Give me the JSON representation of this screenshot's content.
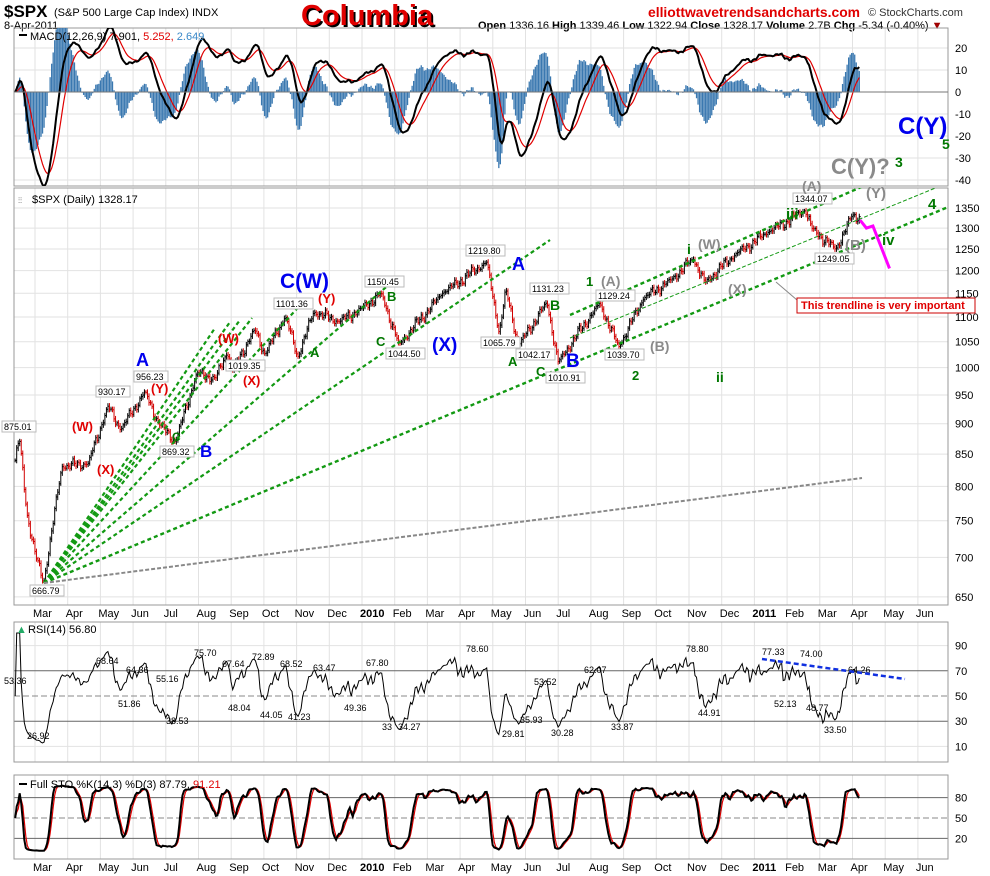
{
  "header": {
    "symbol": "$SPX",
    "name": "(S&P 500 Large Cap Index) INDX",
    "date": "8-Apr-2011",
    "title": "Columbia",
    "website": "elliottwavetrendsandcharts.com",
    "copyright": "© StockCharts.com",
    "open_label": "Open",
    "open": "1336.16",
    "high_label": "High",
    "high": "1339.46",
    "low_label": "Low",
    "low": "1322.94",
    "close_label": "Close",
    "close": "1328.17",
    "volume_label": "Volume",
    "volume": "2.7B",
    "chg_label": "Chg",
    "chg": "-5.34 (-0.40%)"
  },
  "colors": {
    "title": "#e00000",
    "wave_red": "#e00000",
    "wave_blue": "#0000ee",
    "wave_green": "#007700",
    "wave_grey": "#8a8a8a",
    "projection": "#ff00ff",
    "macd_hist": "#3a78b0",
    "signal": "#e00000"
  },
  "chart_data": {
    "type": "line",
    "title": "$SPX (Daily) 1328.17",
    "scale": "log",
    "ylim": [
      650,
      1380
    ],
    "price_ticks": [
      1350,
      1300,
      1250,
      1200,
      1150,
      1100,
      1050,
      1000,
      950,
      900,
      850,
      800,
      750,
      700,
      650
    ],
    "month_labels": [
      "Mar",
      "Apr",
      "May",
      "Jun",
      "Jul",
      "Aug",
      "Sep",
      "Oct",
      "Nov",
      "Dec",
      "2010",
      "Feb",
      "Mar",
      "Apr",
      "May",
      "Jun",
      "Jul",
      "Aug",
      "Sep",
      "Oct",
      "Nov",
      "Dec",
      "2011",
      "Feb",
      "Mar",
      "Apr",
      "May",
      "Jun"
    ],
    "price_keypoints": [
      [
        "2009-02-13",
        840
      ],
      [
        "2009-02-17",
        875.01
      ],
      [
        "2009-02-24",
        760
      ],
      [
        "2009-03-02",
        700
      ],
      [
        "2009-03-09",
        666.79
      ],
      [
        "2009-03-26",
        830
      ],
      [
        "2009-04-20",
        835
      ],
      [
        "2009-05-08",
        930.17
      ],
      [
        "2009-05-20",
        890
      ],
      [
        "2009-06-12",
        956.23
      ],
      [
        "2009-06-25",
        900
      ],
      [
        "2009-07-10",
        869.32
      ],
      [
        "2009-07-30",
        990
      ],
      [
        "2009-08-17",
        980
      ],
      [
        "2009-08-28",
        1030
      ],
      [
        "2009-09-02",
        995
      ],
      [
        "2009-09-23",
        1075
      ],
      [
        "2009-10-02",
        1025
      ],
      [
        "2009-10-21",
        1101.36
      ],
      [
        "2009-11-02",
        1019.35
      ],
      [
        "2009-11-17",
        1110
      ],
      [
        "2009-12-10",
        1090
      ],
      [
        "2009-12-31",
        1118
      ],
      [
        "2010-01-19",
        1150.45
      ],
      [
        "2010-02-05",
        1044.5
      ],
      [
        "2010-03-15",
        1150
      ],
      [
        "2010-04-26",
        1219.8
      ],
      [
        "2010-05-07",
        1065.79
      ],
      [
        "2010-05-13",
        1160
      ],
      [
        "2010-05-25",
        1042.17
      ],
      [
        "2010-06-21",
        1131.23
      ],
      [
        "2010-07-01",
        1010.91
      ],
      [
        "2010-08-09",
        1129.24
      ],
      [
        "2010-08-27",
        1039.7
      ],
      [
        "2010-09-20",
        1140
      ],
      [
        "2010-10-15",
        1180
      ],
      [
        "2010-11-05",
        1227
      ],
      [
        "2010-11-16",
        1174
      ],
      [
        "2010-12-15",
        1240
      ],
      [
        "2011-01-14",
        1290
      ],
      [
        "2011-02-18",
        1344.07
      ],
      [
        "2011-02-24",
        1300
      ],
      [
        "2011-03-16",
        1249.05
      ],
      [
        "2011-03-31",
        1330
      ],
      [
        "2011-04-08",
        1328.17
      ]
    ],
    "projection": [
      [
        "2011-04-08",
        1320
      ],
      [
        "2011-04-14",
        1300
      ],
      [
        "2011-04-20",
        1305
      ],
      [
        "2011-05-05",
        1205
      ]
    ],
    "price_labels": [
      "875.01",
      "666.79",
      "930.17",
      "956.23",
      "869.32",
      "1019.35",
      "1101.36",
      "1150.45",
      "1044.50",
      "1219.80",
      "1065.79",
      "1042.17",
      "1131.23",
      "1010.91",
      "1129.24",
      "1039.70",
      "1344.07",
      "1249.05"
    ],
    "wave_labels": [
      {
        "t": "(W)",
        "c": "red"
      },
      {
        "t": "(X)",
        "c": "red"
      },
      {
        "t": "(Y)",
        "c": "red"
      },
      {
        "t": "(W)",
        "c": "red"
      },
      {
        "t": "(X)",
        "c": "red"
      },
      {
        "t": "(Y)",
        "c": "red"
      },
      {
        "t": "A",
        "c": "blue"
      },
      {
        "t": "B",
        "c": "blue"
      },
      {
        "t": "C(W)",
        "c": "blue"
      },
      {
        "t": "(X)",
        "c": "blue"
      },
      {
        "t": "A",
        "c": "blue"
      },
      {
        "t": "B",
        "c": "blue"
      },
      {
        "t": "C(Y)",
        "c": "blue"
      },
      {
        "t": "C",
        "c": "green"
      },
      {
        "t": "A",
        "c": "green"
      },
      {
        "t": "B",
        "c": "green"
      },
      {
        "t": "C",
        "c": "green"
      },
      {
        "t": "A",
        "c": "green"
      },
      {
        "t": "B",
        "c": "green"
      },
      {
        "t": "C",
        "c": "green"
      },
      {
        "t": "1",
        "c": "green"
      },
      {
        "t": "2",
        "c": "green"
      },
      {
        "t": "i",
        "c": "green"
      },
      {
        "t": "ii",
        "c": "green"
      },
      {
        "t": "iii",
        "c": "green"
      },
      {
        "t": "iv",
        "c": "green"
      },
      {
        "t": "3",
        "c": "green"
      },
      {
        "t": "4",
        "c": "green"
      },
      {
        "t": "5",
        "c": "green"
      },
      {
        "t": "(A)",
        "c": "grey"
      },
      {
        "t": "(B)",
        "c": "grey"
      },
      {
        "t": "(W)",
        "c": "grey"
      },
      {
        "t": "(X)",
        "c": "grey"
      },
      {
        "t": "(A)",
        "c": "grey"
      },
      {
        "t": "(B)",
        "c": "grey"
      },
      {
        "t": "(Y)",
        "c": "grey"
      },
      {
        "t": "C(Y)?",
        "c": "grey"
      }
    ],
    "callout": "This trendline is very important"
  },
  "macd": {
    "legend": "MACD(12,26,9)",
    "macd": "7.901,",
    "signal": "5.252,",
    "hist": "2.649",
    "ticks": [
      20,
      10,
      0,
      -10,
      -20,
      -30,
      -40
    ]
  },
  "rsi": {
    "legend": "RSI(14) 56.80",
    "ticks": [
      90,
      70,
      50,
      30,
      10
    ],
    "labels": [
      "53.36",
      "68.64",
      "64.36",
      "55.16",
      "51.86",
      "38.53",
      "26.92",
      "75.70",
      "67.64",
      "72.89",
      "48.04",
      "44.05",
      "41.23",
      "68.52",
      "63.47",
      "49.36",
      "67.80",
      "34.27",
      "33",
      "78.60",
      "53.52",
      "62.07",
      "29.81",
      "35.93",
      "30.28",
      "33.87",
      "78.80",
      "44.91",
      "77.33",
      "74.00",
      "52.13",
      "48.77",
      "64.26",
      "33.50"
    ]
  },
  "sto": {
    "legend": "Full STO %K(14,3) %D(3) 87.79,",
    "d_value": "91.21",
    "ticks": [
      80,
      50,
      20
    ]
  },
  "price_legend": "$SPX (Daily) 1328.17"
}
